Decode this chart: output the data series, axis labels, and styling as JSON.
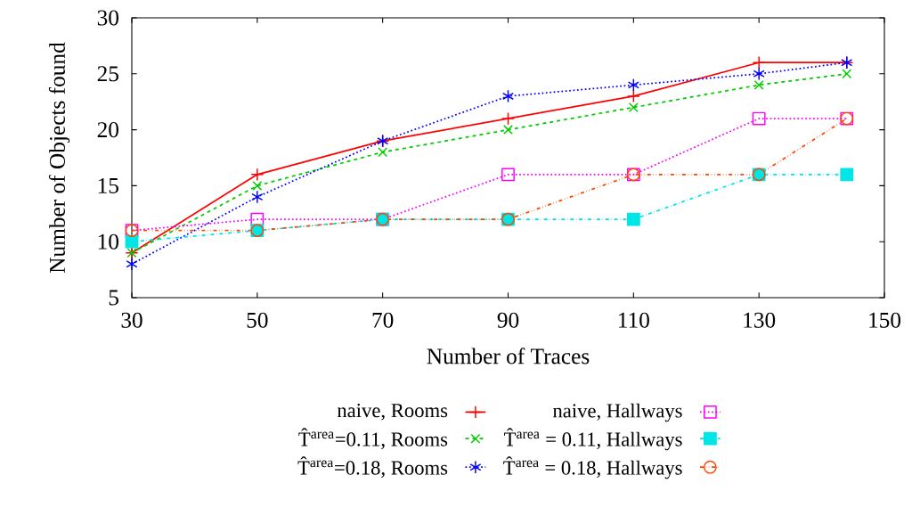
{
  "chart_data": {
    "type": "line",
    "xlabel": "Number of Traces",
    "ylabel": "Number of Objects found",
    "x": [
      30,
      50,
      70,
      90,
      110,
      130,
      144
    ],
    "xlim": [
      30,
      150
    ],
    "xticks": [
      30,
      50,
      70,
      90,
      110,
      130,
      150
    ],
    "ylim": [
      5,
      30
    ],
    "yticks": [
      5,
      10,
      15,
      20,
      25,
      30
    ],
    "legend": "bottom",
    "grid": false,
    "series": [
      {
        "name": "naive, Rooms",
        "color": "#ff0000",
        "marker": "cross",
        "line_style": "solid",
        "values": [
          9,
          16,
          19,
          21,
          23,
          26,
          26
        ]
      },
      {
        "name": "T̂$^{area}$=0.11, Rooms",
        "color": "#00cc00",
        "marker": "cross",
        "line_style": "dashed",
        "values": [
          9,
          15,
          18,
          20,
          22,
          24,
          25
        ]
      },
      {
        "name": "T̂$^{area}$=0.18, Rooms",
        "color": "#0000ff",
        "marker": "cross",
        "line_style": "dotted",
        "values": [
          8,
          14,
          19,
          23,
          24,
          25,
          26
        ]
      },
      {
        "name": "naive, Hallways",
        "color": "#ff00ff",
        "marker": "square",
        "line_style": "dotted",
        "values": [
          11,
          12,
          12,
          16,
          16,
          21,
          21
        ]
      },
      {
        "name": "T̂$^{area}$ = 0.11, Hallways",
        "color": "#00e5e5",
        "marker": "square",
        "line_style": "dashdot",
        "values": [
          10,
          11,
          12,
          12,
          12,
          16,
          16
        ]
      },
      {
        "name": "T̂$^{area}$ = 0.18, Hallways",
        "color": "#ff4500",
        "marker": "circle",
        "line_style": "dashdotdot",
        "values": [
          11,
          11,
          12,
          12,
          16,
          16,
          21
        ]
      }
    ]
  }
}
